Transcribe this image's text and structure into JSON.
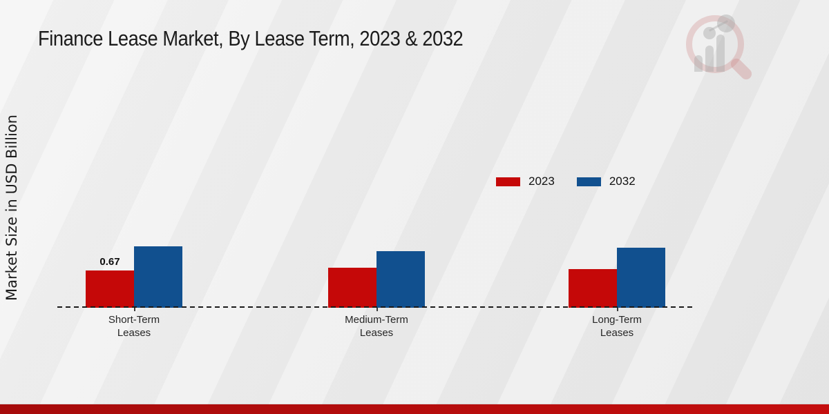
{
  "header": {
    "title": "Finance Lease Market, By Lease Term, 2023 & 2032"
  },
  "chart_data": {
    "type": "bar",
    "title": "Finance Lease Market, By Lease Term, 2023 & 2032",
    "xlabel": "",
    "ylabel": "Market Size in USD Billion",
    "categories": [
      "Short-Term Leases",
      "Medium-Term Leases",
      "Long-Term Leases"
    ],
    "series": [
      {
        "name": "2023",
        "color": "#c50808",
        "values": [
          0.67,
          0.71,
          0.69
        ],
        "data_labels": [
          "0.67",
          "",
          ""
        ]
      },
      {
        "name": "2032",
        "color": "#11508f",
        "values": [
          1.1,
          1.01,
          1.08
        ],
        "data_labels": [
          "",
          "",
          ""
        ]
      }
    ],
    "ylim": [
      0,
      1.4
    ],
    "grid": false,
    "y_axis_ticks_visible": false,
    "baseline_style": "dashed",
    "legend_position": "upper right"
  },
  "branding": {
    "watermark_icon": "market-research-future-logo",
    "footer_bar_color": "#b30c0c"
  }
}
